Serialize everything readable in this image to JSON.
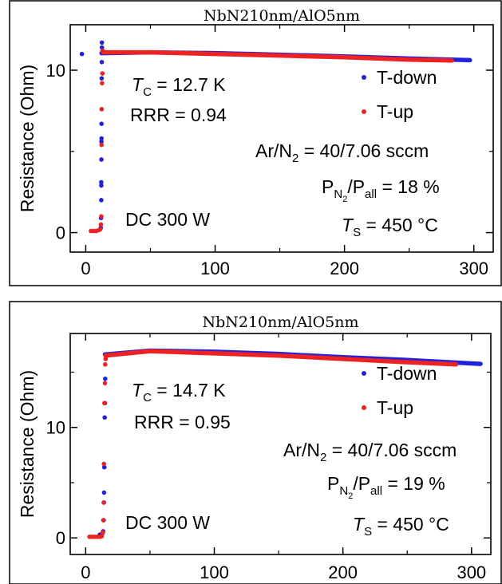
{
  "chart_data": [
    {
      "type": "scatter",
      "title": "NbN210nm/AlO5nm",
      "xlabel": "",
      "ylabel": "Resistance (Ohm)",
      "xlim": [
        -12,
        315
      ],
      "ylim": [
        -1.2,
        12.8
      ],
      "xticks": [
        0,
        100,
        200,
        300
      ],
      "yticks": [
        0,
        10
      ],
      "grid": false,
      "legend": "right",
      "annotations": {
        "tc_sym": "T",
        "tc_sub": "C",
        "tc_val": " = 12.7 K",
        "rrr": "RRR = 0.94",
        "gas_a": "Ar/N",
        "gas_sub": "2",
        "gas_b": " = 40/7.06 sccm",
        "p_sym": "P",
        "p_sub": "N",
        "p_subsub": "2",
        "p_slash": "/P",
        "p_all": "all",
        "p_val": " = 18 %",
        "ts_sym": "T",
        "ts_sub": "S",
        "ts_val": " = 450 °C",
        "power": "DC 300 W"
      },
      "series": [
        {
          "name": "T-down",
          "color": "#2222dd",
          "plateau": [
            [
              12.2,
              11.05
            ],
            [
              50,
              11.1
            ],
            [
              100,
              11.05
            ],
            [
              150,
              10.95
            ],
            [
              200,
              10.85
            ],
            [
              250,
              10.72
            ],
            [
              297,
              10.62
            ]
          ],
          "points": [
            [
              -3,
              11.0
            ],
            [
              11.6,
              0.3
            ],
            [
              11.8,
              0.9
            ],
            [
              12.0,
              2.0
            ],
            [
              12.0,
              2.9
            ],
            [
              12.0,
              3.1
            ],
            [
              12.1,
              4.5
            ],
            [
              12.1,
              5.6
            ],
            [
              12.2,
              5.8
            ],
            [
              12.2,
              6.7
            ],
            [
              12.3,
              9.5
            ],
            [
              12.4,
              10.5
            ],
            [
              12.5,
              11.4
            ],
            [
              12.5,
              11.7
            ]
          ]
        },
        {
          "name": "T-up",
          "color": "#ee2222",
          "plateau": [
            [
              13.5,
              11.1
            ],
            [
              50,
              11.1
            ],
            [
              100,
              11.0
            ],
            [
              150,
              10.9
            ],
            [
              200,
              10.8
            ],
            [
              250,
              10.65
            ],
            [
              283,
              10.6
            ]
          ],
          "points": [
            [
              4,
              0.1
            ],
            [
              6,
              0.1
            ],
            [
              8,
              0.1
            ],
            [
              10,
              0.15
            ],
            [
              11.2,
              0.2
            ],
            [
              11.7,
              0.5
            ],
            [
              12.0,
              1.0
            ],
            [
              12.2,
              5.4
            ],
            [
              12.3,
              7.6
            ],
            [
              12.6,
              9.2
            ],
            [
              12.9,
              9.8
            ],
            [
              13.1,
              11.2
            ]
          ]
        }
      ]
    },
    {
      "type": "scatter",
      "title": "NbN210nm/AlO5nm",
      "xlabel": "",
      "ylabel": "Resistance (Ohm)",
      "xlim": [
        -12,
        315
      ],
      "ylim": [
        -1.5,
        18.5
      ],
      "xticks": [
        0,
        100,
        200,
        300
      ],
      "yticks": [
        0,
        10
      ],
      "grid": false,
      "legend": "right",
      "annotations": {
        "tc_sym": "T",
        "tc_sub": "C",
        "tc_val": " = 14.7 K",
        "rrr": "RRR = 0.95",
        "gas_a": "Ar/N",
        "gas_sub": "2",
        "gas_b": " = 40/7.06 sccm",
        "p_sym": "P",
        "p_sub": "N",
        "p_subsub": "2",
        "p_slash": "/P",
        "p_all": "all",
        "p_val": " = 19 %",
        "ts_sym": "T",
        "ts_sub": "S",
        "ts_val": " = 450 °C",
        "power": "DC 300 W"
      },
      "series": [
        {
          "name": "T-down",
          "color": "#2222dd",
          "plateau": [
            [
              15,
              16.6
            ],
            [
              50,
              16.95
            ],
            [
              100,
              16.85
            ],
            [
              150,
              16.65
            ],
            [
              200,
              16.35
            ],
            [
              250,
              16.1
            ],
            [
              307,
              15.75
            ]
          ],
          "points": [
            [
              11,
              0.3
            ],
            [
              13,
              0.4
            ],
            [
              13.6,
              0.6
            ],
            [
              14.0,
              1.6
            ],
            [
              14.2,
              3.2
            ],
            [
              14.3,
              4.1
            ],
            [
              14.5,
              6.4
            ],
            [
              14.8,
              10.9
            ],
            [
              15.0,
              12.2
            ],
            [
              15.2,
              14.4
            ],
            [
              15.5,
              16.2
            ],
            [
              16,
              16.6
            ]
          ]
        },
        {
          "name": "T-up",
          "color": "#ee2222",
          "plateau": [
            [
              15.5,
              16.5
            ],
            [
              50,
              16.9
            ],
            [
              100,
              16.7
            ],
            [
              150,
              16.5
            ],
            [
              200,
              16.2
            ],
            [
              250,
              15.9
            ],
            [
              288,
              15.7
            ]
          ],
          "points": [
            [
              3,
              0.1
            ],
            [
              5,
              0.1
            ],
            [
              7,
              0.1
            ],
            [
              9,
              0.1
            ],
            [
              11,
              0.1
            ],
            [
              12.5,
              0.15
            ],
            [
              13.3,
              0.5
            ],
            [
              13.7,
              1.6
            ],
            [
              14.0,
              3.2
            ],
            [
              14.2,
              6.7
            ],
            [
              14.6,
              12.2
            ],
            [
              15.0,
              14.0
            ],
            [
              15.2,
              15.7
            ],
            [
              15.5,
              16.2
            ]
          ]
        }
      ]
    }
  ]
}
